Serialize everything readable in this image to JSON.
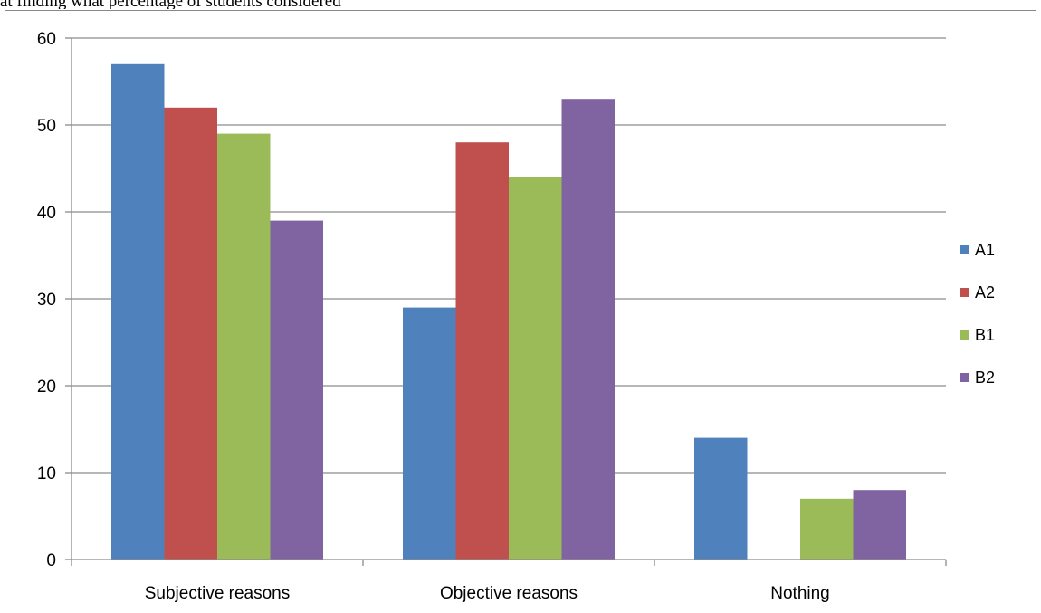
{
  "caption": "at finding what percentage of students considered",
  "chart_data": {
    "type": "bar",
    "title": "",
    "xlabel": "",
    "ylabel": "",
    "ylim": [
      0,
      60
    ],
    "yticks": [
      0,
      10,
      20,
      30,
      40,
      50,
      60
    ],
    "grid": true,
    "legend_position": "right",
    "categories": [
      "Subjective reasons",
      "Objective reasons",
      "Nothing"
    ],
    "series": [
      {
        "name": "A1",
        "color": "#4F81BD",
        "values": [
          57,
          29,
          14
        ]
      },
      {
        "name": "A2",
        "color": "#C0504D",
        "values": [
          52,
          48,
          0
        ]
      },
      {
        "name": "B1",
        "color": "#9BBB59",
        "values": [
          49,
          44,
          7
        ]
      },
      {
        "name": "B2",
        "color": "#8064A2",
        "values": [
          39,
          53,
          8
        ]
      }
    ]
  }
}
